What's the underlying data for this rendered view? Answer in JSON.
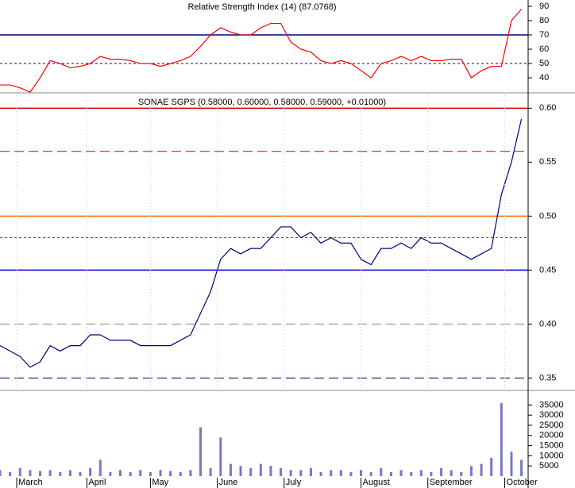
{
  "chart_data": [
    {
      "type": "line",
      "title": "Relative Strength Index (14) (87.0768)",
      "x": [
        0,
        3,
        6,
        9,
        12,
        15,
        18,
        21,
        24,
        27,
        30,
        33,
        36,
        39,
        42,
        45,
        48,
        51,
        54,
        57,
        60,
        63,
        66,
        69,
        72,
        75,
        78,
        81,
        84,
        87,
        90,
        93,
        96,
        99,
        102,
        105,
        108,
        111,
        114,
        117,
        120,
        123,
        126,
        129,
        132,
        135,
        138,
        141,
        144,
        147,
        150,
        153,
        156
      ],
      "series": [
        {
          "color": "#ff0000",
          "values": [
            35,
            35,
            33,
            30,
            40,
            52,
            50,
            47,
            48,
            50,
            55,
            53,
            53,
            52,
            50,
            50,
            48,
            50,
            52,
            55,
            62,
            70,
            75,
            72,
            70,
            70,
            75,
            78,
            78,
            65,
            60,
            58,
            52,
            50,
            52,
            50,
            45,
            40,
            50,
            52,
            55,
            52,
            55,
            52,
            52,
            53,
            53,
            40,
            45,
            48,
            48,
            80,
            88
          ]
        }
      ],
      "xlim": [
        0,
        158
      ],
      "ylim": [
        30.6,
        94.4
      ],
      "yticks": [
        40,
        50,
        60,
        70,
        80,
        90
      ],
      "reference_lines": [
        {
          "value": 70,
          "color": "#000080",
          "style": "solid"
        },
        {
          "value": 50,
          "color": "#000080",
          "style": "dotted"
        }
      ]
    },
    {
      "type": "line",
      "title": "SONAE SGPS (0.58000, 0.60000, 0.58000, 0.59000, +0.01000)",
      "x": [
        0,
        3,
        6,
        9,
        12,
        15,
        18,
        21,
        24,
        27,
        30,
        33,
        36,
        39,
        42,
        45,
        48,
        51,
        54,
        57,
        60,
        63,
        66,
        69,
        72,
        75,
        78,
        81,
        84,
        87,
        90,
        93,
        96,
        99,
        102,
        105,
        108,
        111,
        114,
        117,
        120,
        123,
        126,
        129,
        132,
        135,
        138,
        141,
        144,
        147,
        150,
        153,
        156
      ],
      "series": [
        {
          "color": "#000080",
          "values": [
            0.38,
            0.375,
            0.37,
            0.36,
            0.365,
            0.38,
            0.375,
            0.38,
            0.38,
            0.39,
            0.39,
            0.385,
            0.385,
            0.385,
            0.38,
            0.38,
            0.38,
            0.38,
            0.385,
            0.39,
            0.41,
            0.43,
            0.46,
            0.47,
            0.465,
            0.47,
            0.47,
            0.48,
            0.49,
            0.49,
            0.48,
            0.485,
            0.475,
            0.48,
            0.475,
            0.475,
            0.46,
            0.455,
            0.47,
            0.47,
            0.475,
            0.47,
            0.48,
            0.475,
            0.475,
            0.47,
            0.465,
            0.46,
            0.465,
            0.47,
            0.52,
            0.55,
            0.59
          ]
        }
      ],
      "xlim": [
        0,
        158
      ],
      "ylim": [
        0.34,
        0.612
      ],
      "yticks": [
        0.35,
        {
          "value": 0.4,
          "label": "0.40"
        },
        0.45,
        {
          "value": 0.5,
          "label": "0.50"
        },
        0.55,
        {
          "value": 0.6,
          "label": "0.60"
        }
      ],
      "reference_lines": [
        {
          "value": 0.6,
          "color": "#cc0000",
          "style": "solid"
        },
        {
          "value": 0.56,
          "color": "#cc0000",
          "style": "dashed"
        },
        {
          "value": 0.5,
          "color": "#ff6600",
          "style": "solid"
        },
        {
          "value": 0.48,
          "color": "#cc00cc",
          "style": "dotted"
        },
        {
          "value": 0.45,
          "color": "#0000cc",
          "style": "solid"
        },
        {
          "value": 0.4,
          "color": "#888888",
          "style": "dashed"
        },
        {
          "value": 0.35,
          "color": "#000080",
          "style": "dashed"
        }
      ]
    },
    {
      "type": "bar",
      "x": [
        0,
        3,
        6,
        9,
        12,
        15,
        18,
        21,
        24,
        27,
        30,
        33,
        36,
        39,
        42,
        45,
        48,
        51,
        54,
        57,
        60,
        63,
        66,
        69,
        72,
        75,
        78,
        81,
        84,
        87,
        90,
        93,
        96,
        99,
        102,
        105,
        108,
        111,
        114,
        117,
        120,
        123,
        126,
        129,
        132,
        135,
        138,
        141,
        144,
        147,
        150,
        153,
        156
      ],
      "series": [
        {
          "color": "#7777cc",
          "values": [
            3000,
            2000,
            4000,
            3000,
            2500,
            3000,
            2000,
            3000,
            2000,
            4000,
            8000,
            2000,
            3000,
            2000,
            3000,
            2000,
            3000,
            2500,
            2000,
            3000,
            24000,
            4000,
            19000,
            6000,
            5000,
            4000,
            6000,
            5000,
            4000,
            3000,
            3000,
            4000,
            2000,
            3000,
            3000,
            2000,
            3000,
            2000,
            4000,
            2000,
            3000,
            2000,
            3000,
            2000,
            4000,
            3000,
            2000,
            5000,
            6000,
            9000,
            36000,
            12000,
            8000
          ]
        }
      ],
      "xlim": [
        0,
        158
      ],
      "ylim": [
        0,
        41000
      ],
      "yticks": [
        5000,
        10000,
        15000,
        20000,
        25000,
        30000,
        35000
      ],
      "xticks": [
        {
          "value": 5,
          "label": "March"
        },
        {
          "value": 26,
          "label": "April"
        },
        {
          "value": 45,
          "label": "May"
        },
        {
          "value": 65,
          "label": "June"
        },
        {
          "value": 85,
          "label": "July"
        },
        {
          "value": 108,
          "label": "August"
        },
        {
          "value": 128,
          "label": "September"
        },
        {
          "value": 151,
          "label": "October"
        }
      ]
    }
  ]
}
